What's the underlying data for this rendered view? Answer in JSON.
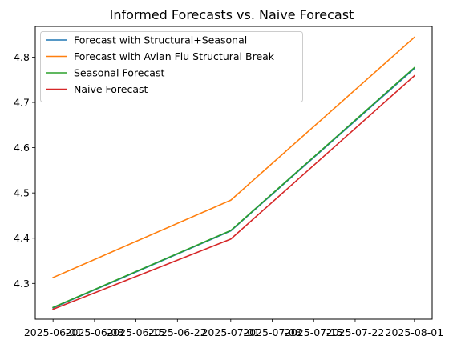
{
  "chart_data": {
    "type": "line",
    "title": "Informed Forecasts vs. Naive Forecast",
    "xlabel": "",
    "ylabel": "",
    "x": [
      "2025-06-01",
      "2025-07-01",
      "2025-08-01"
    ],
    "xlim": [
      "2025-05-29",
      "2025-08-04"
    ],
    "x_ticks": [
      "2025-06-01",
      "2025-06-08",
      "2025-06-15",
      "2025-06-22",
      "2025-07-01",
      "2025-07-08",
      "2025-07-15",
      "2025-07-22",
      "2025-08-01"
    ],
    "ylim": [
      4.221,
      4.868
    ],
    "y_ticks": [
      4.3,
      4.4,
      4.5,
      4.6,
      4.7,
      4.8
    ],
    "grid": false,
    "legend_position": "upper-left",
    "series": [
      {
        "name": "Forecast with Structural+Seasonal",
        "color": "#1f77b4",
        "values": [
          4.246,
          4.416,
          4.775
        ]
      },
      {
        "name": "Forecast with Avian Flu Structural Break",
        "color": "#ff7f0e",
        "values": [
          4.313,
          4.484,
          4.844
        ]
      },
      {
        "name": "Seasonal Forecast",
        "color": "#2ca02c",
        "values": [
          4.247,
          4.417,
          4.777
        ]
      },
      {
        "name": "Naive Forecast",
        "color": "#d62728",
        "values": [
          4.243,
          4.398,
          4.759
        ]
      }
    ]
  }
}
